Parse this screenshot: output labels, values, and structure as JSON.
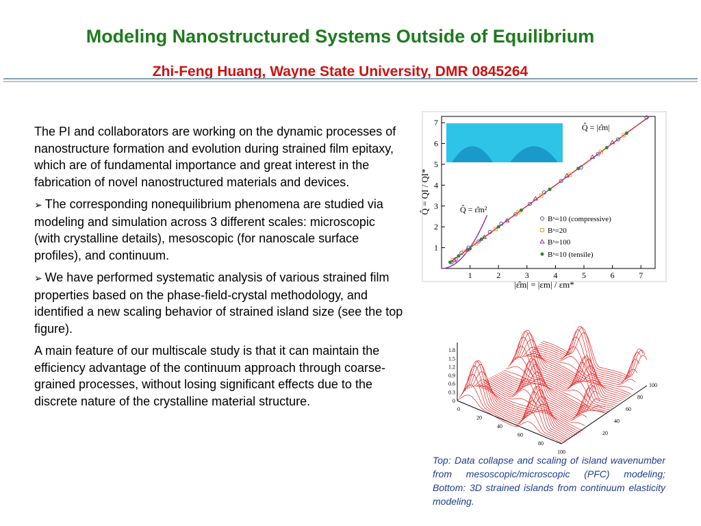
{
  "header": {
    "title": "Modeling Nanostructured Systems Outside of Equilibrium",
    "subtitle": "Zhi-Feng Huang, Wayne State University, DMR 0845264"
  },
  "body": {
    "paragraphs": [
      "The PI and collaborators are working on the dynamic processes of nanostructure formation and evolution during strained film epitaxy, which are of fundamental importance and great interest in the fabrication of novel nanostructured materials and devices.",
      "The corresponding nonequilibrium phenomena are studied via modeling and simulation across 3 different scales: microscopic (with crystalline details), mesoscopic (for nanoscale surface profiles), and continuum.",
      "We have performed systematic analysis of various strained film properties based on the phase-field-crystal methodology, and identified a new scaling behavior of strained island size (see the top figure).",
      "A main feature of our multiscale study is that it can maintain the efficiency advantage of the continuum approach through coarse-grained processes, without losing significant effects due to the discrete nature of the crystalline material structure."
    ]
  },
  "top_figure": {
    "type": "scatter",
    "x_label": "|ε̂m| = |εm| / εm*",
    "y_label": "Q̂ = QI / QI*",
    "annotations": [
      "Q̂ = |ε̂m|",
      "Q̂ = ε̂m²"
    ],
    "xlim": [
      0,
      7.5
    ],
    "ylim": [
      0,
      7.3
    ],
    "xticks": [
      1,
      2,
      3,
      4,
      5,
      6,
      7
    ],
    "yticks": [
      1,
      2,
      3,
      4,
      5,
      6,
      7
    ],
    "series": [
      {
        "name": "Bˣ=10 (compressive)",
        "color": "#5a4aa8",
        "marker": "circle",
        "x": [
          0.35,
          0.5,
          0.7,
          0.95,
          1.3,
          1.7,
          2.1,
          2.6,
          3.1,
          3.6,
          4.2,
          4.9,
          5.5,
          6.2,
          7.2
        ],
        "y": [
          0.3,
          0.45,
          0.75,
          1.0,
          1.3,
          1.75,
          2.15,
          2.6,
          3.1,
          3.65,
          4.2,
          4.85,
          5.5,
          6.2,
          7.25
        ]
      },
      {
        "name": "Bˣ=20",
        "color": "#e8a030",
        "marker": "square",
        "x": [
          0.4,
          0.8,
          1.2,
          1.9,
          2.7,
          3.5,
          4.5,
          5.6,
          6.4
        ],
        "y": [
          0.4,
          0.8,
          1.2,
          1.9,
          2.7,
          3.5,
          4.5,
          5.6,
          6.4
        ]
      },
      {
        "name": "Bˣ=100",
        "color": "#8a3a8a",
        "marker": "triangle",
        "x": [
          0.45,
          0.9,
          1.5,
          2.3,
          3.3,
          4.4,
          5.3,
          6.0
        ],
        "y": [
          0.4,
          0.9,
          1.5,
          2.3,
          3.35,
          4.45,
          5.35,
          6.05
        ]
      },
      {
        "name": "Bˣ=10 (tensile)",
        "color": "#2a8a2a",
        "marker": "dot",
        "x": [
          0.3,
          0.6,
          1.0,
          1.4,
          2.0,
          2.8,
          3.8,
          4.8,
          5.8,
          6.5
        ],
        "y": [
          0.3,
          0.6,
          0.95,
          1.4,
          2.0,
          2.8,
          3.8,
          4.8,
          5.8,
          6.5
        ]
      }
    ]
  },
  "bottom_figure": {
    "z_ticks": [
      "1.8",
      "1.5",
      "1.2",
      "0.9",
      "0.6",
      "0.3",
      "0"
    ],
    "x_ticks": [
      "0",
      "20",
      "40",
      "60",
      "80",
      "100"
    ],
    "y_ticks": [
      "100",
      "80",
      "60",
      "40",
      "20"
    ]
  },
  "caption": "Top: Data collapse and scaling of island wavenumber from mesoscopic/microscopic (PFC) modeling; Bottom: 3D strained islands from continuum elasticity modeling."
}
